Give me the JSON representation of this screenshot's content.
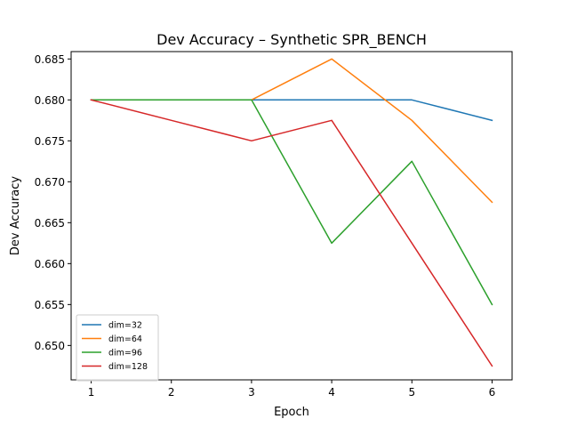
{
  "chart_data": {
    "type": "line",
    "title": "Dev Accuracy – Synthetic SPR_BENCH",
    "xlabel": "Epoch",
    "ylabel": "Dev Accuracy",
    "x": [
      1,
      2,
      3,
      4,
      5,
      6
    ],
    "xticks": [
      "1",
      "2",
      "3",
      "4",
      "5",
      "6"
    ],
    "yticks": [
      "0.650",
      "0.655",
      "0.660",
      "0.665",
      "0.670",
      "0.675",
      "0.680",
      "0.685"
    ],
    "xlim": [
      0.75,
      6.25
    ],
    "ylim": [
      0.6458,
      0.6859
    ],
    "grid": false,
    "legend_position": "lower-left",
    "series": [
      {
        "name": "dim=32",
        "color": "#1f77b4",
        "values": [
          0.68,
          0.68,
          0.68,
          0.68,
          0.68,
          0.6775
        ]
      },
      {
        "name": "dim=64",
        "color": "#ff7f0e",
        "values": [
          0.68,
          0.68,
          0.68,
          0.685,
          0.6775,
          0.6675
        ]
      },
      {
        "name": "dim=96",
        "color": "#2ca02c",
        "values": [
          0.68,
          0.68,
          0.68,
          0.6625,
          0.6725,
          0.655
        ]
      },
      {
        "name": "dim=128",
        "color": "#d62728",
        "values": [
          0.68,
          0.6775,
          0.675,
          0.6775,
          0.6625,
          0.6475
        ]
      }
    ]
  }
}
